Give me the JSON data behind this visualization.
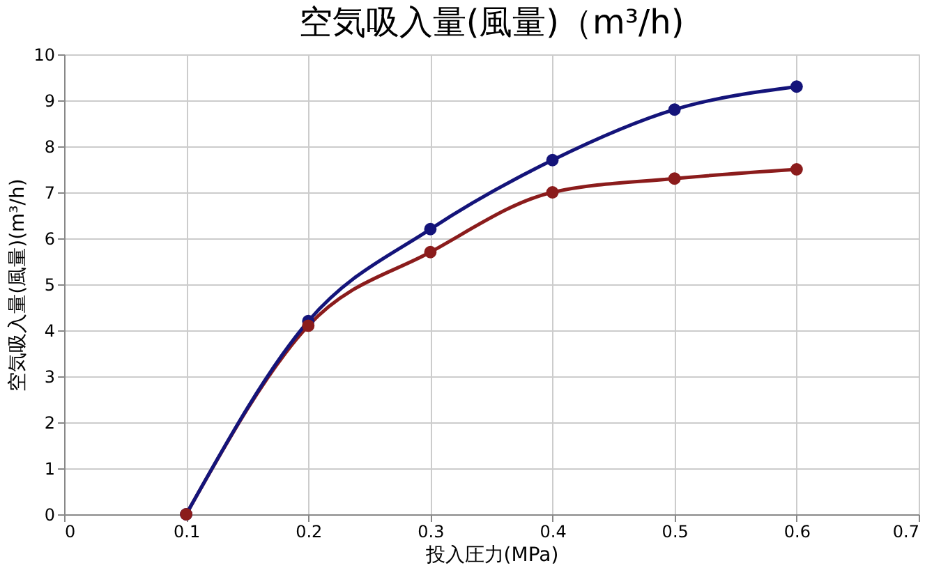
{
  "chart_data": {
    "type": "line",
    "title": "空気吸入量(風量)（m³/h)",
    "xlabel": "投入圧力(MPa)",
    "ylabel": "空気吸入量(風量)(m³/h)",
    "x": [
      0.1,
      0.2,
      0.3,
      0.4,
      0.5,
      0.6
    ],
    "series": [
      {
        "color": "#8b1c1c",
        "values": [
          0,
          4.1,
          5.7,
          7.0,
          7.3,
          7.5
        ]
      },
      {
        "color": "#14147a",
        "values": [
          0,
          4.2,
          6.2,
          7.7,
          8.8,
          9.3
        ]
      }
    ],
    "xlim": [
      0,
      0.7
    ],
    "xticks": [
      0,
      0.1,
      0.2,
      0.3,
      0.4,
      0.5,
      0.6,
      0.7
    ],
    "ylim": [
      0,
      10
    ],
    "yticks": [
      0,
      1,
      2,
      3,
      4,
      5,
      6,
      7,
      8,
      9,
      10
    ],
    "grid": true,
    "marker": "circle",
    "line_style": "solid"
  }
}
